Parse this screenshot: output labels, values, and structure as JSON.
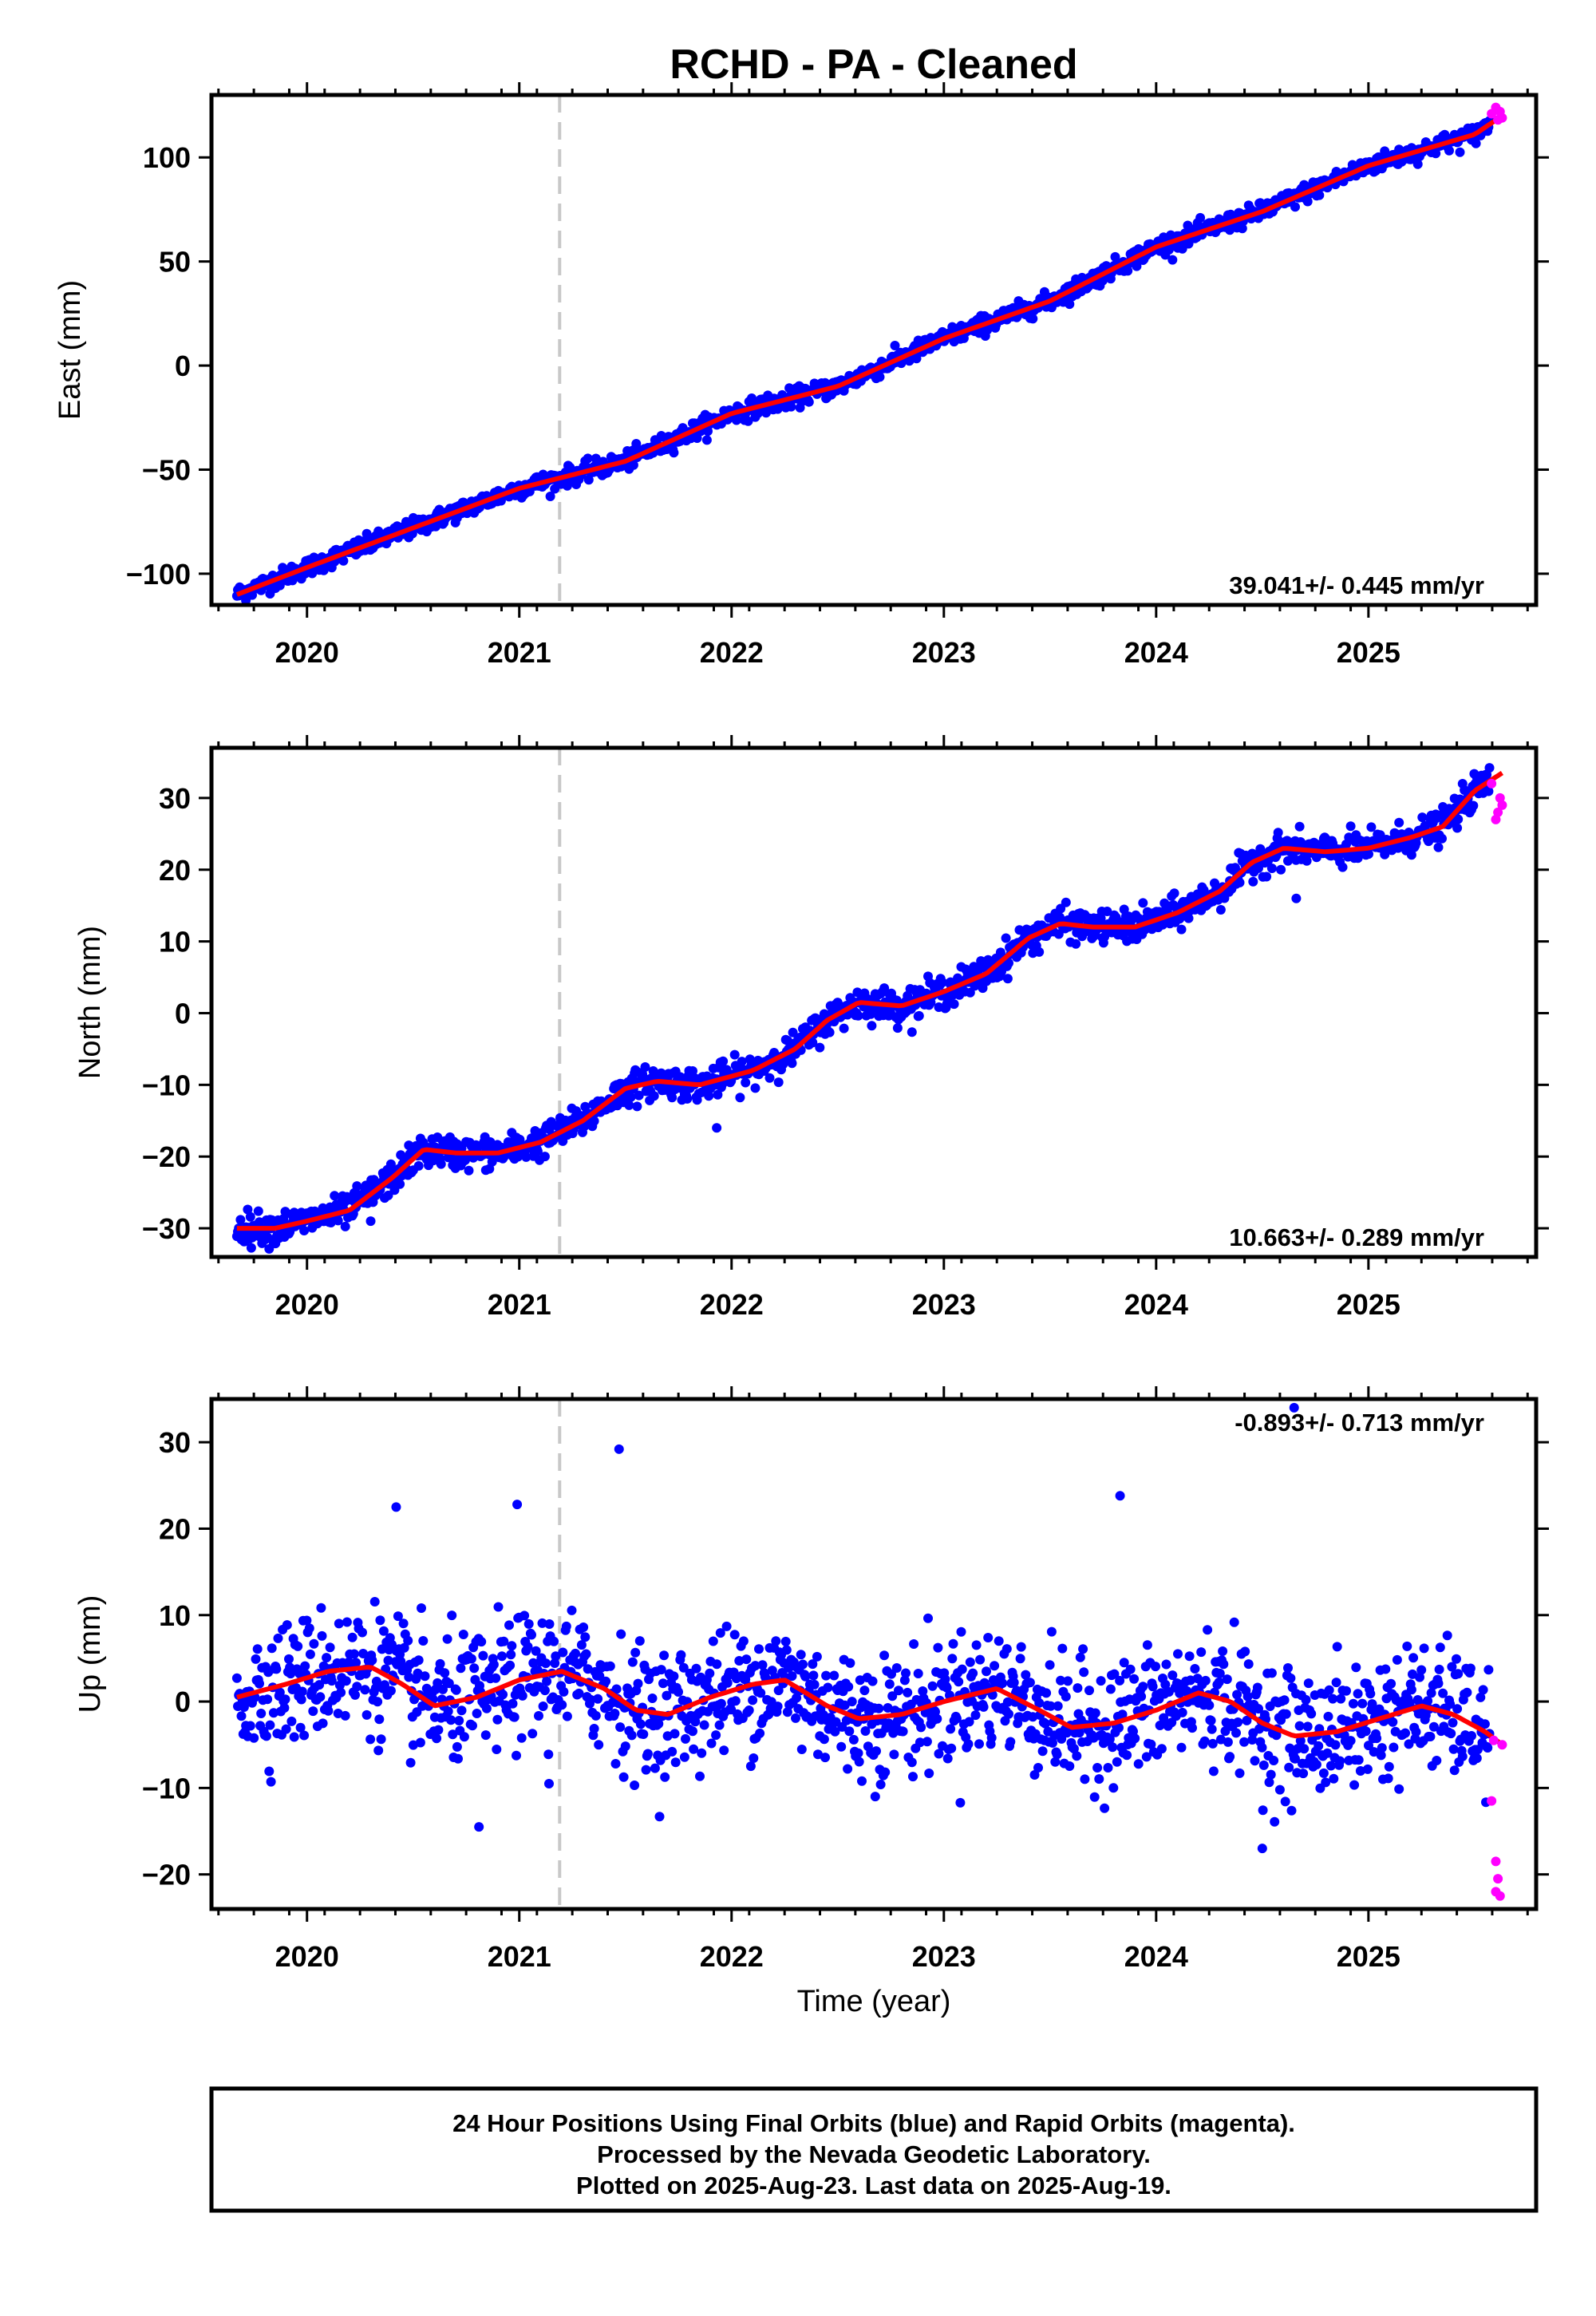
{
  "title": "RCHD  - PA - Cleaned",
  "colors": {
    "final_orbit": "#0000ff",
    "rapid_orbit": "#ff00ff",
    "model": "#ff0000",
    "event_line": "#c8c8c8",
    "frame": "#000000"
  },
  "chart_data": [
    {
      "type": "scatter",
      "panel": "east",
      "ylabel": "East (mm)",
      "xlabel": "",
      "xlim": [
        2019.55,
        2025.79
      ],
      "ylim": [
        -115,
        130
      ],
      "x_ticks": [
        2020,
        2021,
        2022,
        2023,
        2024,
        2025
      ],
      "x_tick_labels": [
        "2020",
        "2021",
        "2022",
        "2023",
        "2024",
        "2025"
      ],
      "y_ticks": [
        -100,
        -50,
        0,
        50,
        100
      ],
      "y_tick_labels": [
        "−100",
        "−50",
        "0",
        "50",
        "100"
      ],
      "rate_label": "39.041+/- 0.445 mm/yr",
      "rate_position": "bottom-right",
      "event_line_x": 2021.19,
      "trend": {
        "rate": 39.041,
        "offset": -110,
        "t0": 2019.67,
        "noise": 2.2
      },
      "model": {
        "x": [
          2019.67,
          2020.0,
          2020.5,
          2021.0,
          2021.5,
          2022.0,
          2022.5,
          2023.0,
          2023.5,
          2024.0,
          2024.5,
          2025.0,
          2025.5,
          2025.63
        ],
        "y": [
          -110,
          -97,
          -78,
          -59,
          -46,
          -23,
          -10,
          13,
          31,
          57,
          74,
          96,
          111,
          120
        ]
      },
      "rapid_points": {
        "x": [
          2025.58,
          2025.6,
          2025.61,
          2025.62,
          2025.63
        ],
        "y": [
          121,
          124,
          118,
          122,
          119
        ]
      },
      "outliers": {
        "x": [],
        "y": []
      }
    },
    {
      "type": "scatter",
      "panel": "north",
      "ylabel": "North (mm)",
      "xlabel": "",
      "xlim": [
        2019.55,
        2025.79
      ],
      "ylim": [
        -34,
        37
      ],
      "x_ticks": [
        2020,
        2021,
        2022,
        2023,
        2024,
        2025
      ],
      "x_tick_labels": [
        "2020",
        "2021",
        "2022",
        "2023",
        "2024",
        "2025"
      ],
      "y_ticks": [
        -30,
        -20,
        -10,
        0,
        10,
        20,
        30
      ],
      "y_tick_labels": [
        "−30",
        "−20",
        "−10",
        "0",
        "10",
        "20",
        "30"
      ],
      "rate_label": "10.663+/- 0.289 mm/yr",
      "rate_position": "bottom-right",
      "event_line_x": 2021.19,
      "trend": {
        "noise": 1.1
      },
      "model": {
        "x": [
          2019.67,
          2019.85,
          2020.0,
          2020.2,
          2020.4,
          2020.55,
          2020.7,
          2020.9,
          2021.1,
          2021.3,
          2021.5,
          2021.65,
          2021.85,
          2022.1,
          2022.3,
          2022.45,
          2022.6,
          2022.8,
          2023.0,
          2023.2,
          2023.4,
          2023.55,
          2023.7,
          2023.9,
          2024.1,
          2024.3,
          2024.45,
          2024.6,
          2024.8,
          2025.0,
          2025.2,
          2025.35,
          2025.5,
          2025.63
        ],
        "y": [
          -30,
          -30,
          -29,
          -27.5,
          -23,
          -19,
          -19.5,
          -19.5,
          -18,
          -15,
          -10.5,
          -9.5,
          -10,
          -8,
          -5,
          -1,
          1.5,
          1,
          3,
          5.5,
          10.5,
          12.5,
          12,
          12,
          14,
          17,
          21,
          23,
          22.5,
          23,
          24.5,
          26,
          31,
          33.5
        ]
      },
      "rapid_points": {
        "x": [
          2025.58,
          2025.6,
          2025.61,
          2025.62,
          2025.63
        ],
        "y": [
          32,
          27,
          28,
          30,
          29
        ]
      },
      "outliers": {
        "x": [
          2024.66,
          2021.93,
          2020.3
        ],
        "y": [
          16,
          -16,
          -29
        ]
      }
    },
    {
      "type": "scatter",
      "panel": "up",
      "ylabel": "Up (mm)",
      "xlabel": "Time (year)",
      "xlim": [
        2019.55,
        2025.79
      ],
      "ylim": [
        -24,
        35
      ],
      "x_ticks": [
        2020,
        2021,
        2022,
        2023,
        2024,
        2025
      ],
      "x_tick_labels": [
        "2020",
        "2021",
        "2022",
        "2023",
        "2024",
        "2025"
      ],
      "y_ticks": [
        -20,
        -10,
        0,
        10,
        20,
        30
      ],
      "y_tick_labels": [
        "−20",
        "−10",
        "0",
        "10",
        "20",
        "30"
      ],
      "rate_label": "-0.893+/- 0.713 mm/yr",
      "rate_position": "top-right",
      "event_line_x": 2021.19,
      "trend": {
        "noise": 3.6
      },
      "model": {
        "x": [
          2019.67,
          2019.9,
          2020.1,
          2020.3,
          2020.45,
          2020.6,
          2020.8,
          2021.0,
          2021.2,
          2021.4,
          2021.55,
          2021.7,
          2021.9,
          2022.1,
          2022.25,
          2022.45,
          2022.6,
          2022.8,
          2023.0,
          2023.25,
          2023.45,
          2023.6,
          2023.8,
          2024.0,
          2024.2,
          2024.35,
          2024.5,
          2024.65,
          2024.85,
          2025.05,
          2025.25,
          2025.4,
          2025.55,
          2025.63
        ],
        "y": [
          0.5,
          2,
          3.5,
          4,
          2,
          -0.5,
          0.5,
          2.5,
          3.5,
          1.5,
          -1,
          -1.5,
          0.5,
          2,
          2.5,
          -0.5,
          -2,
          -1.5,
          0,
          1.5,
          -1,
          -3,
          -2.5,
          -1,
          1,
          0,
          -2.5,
          -4,
          -3.5,
          -2,
          -0.5,
          -1.5,
          -3.5,
          -5
        ]
      },
      "rapid_points": {
        "x": [
          2025.58,
          2025.6,
          2025.61,
          2025.62,
          2025.63,
          2025.59,
          2025.6
        ],
        "y": [
          -11.5,
          -18.5,
          -20.5,
          -22.5,
          -5,
          -4.5,
          -22
        ]
      },
      "outliers": {
        "x": [
          2020.42,
          2020.99,
          2021.47,
          2023.83,
          2024.65,
          2024.5,
          2020.81,
          2021.14
        ],
        "y": [
          22.5,
          22.8,
          29.2,
          23.8,
          34,
          -17,
          -14.5,
          -9.5
        ]
      }
    }
  ],
  "footer": {
    "line1": "24 Hour Positions Using Final Orbits (blue) and Rapid Orbits (magenta).",
    "line2": "Processed by the Nevada Geodetic Laboratory.",
    "line3": "Plotted on 2025-Aug-23. Last data on 2025-Aug-19."
  }
}
